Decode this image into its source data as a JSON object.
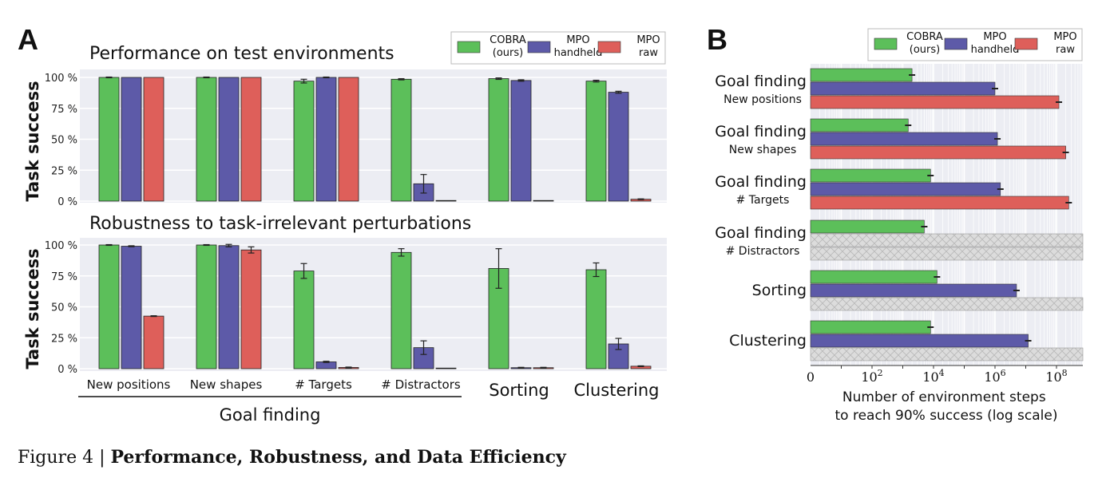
{
  "colors": {
    "cobra": "#5cbf5a",
    "handheld": "#5d5aa8",
    "raw": "#de5f5a",
    "plot_bg": "#ecedf3",
    "hatch": "#d9d9d9"
  },
  "panel_a": {
    "label": "A",
    "legend": [
      {
        "key": "cobra",
        "line1": "COBRA",
        "line2": "(ours)"
      },
      {
        "key": "handheld",
        "line1": "MPO",
        "line2": "handheld"
      },
      {
        "key": "raw",
        "line1": "MPO",
        "line2": "raw"
      }
    ],
    "group_labels": [
      "New positions",
      "New shapes",
      "# Targets",
      "# Distractors",
      "Sorting",
      "Clustering"
    ],
    "super_label": "Goal finding"
  },
  "panel_b": {
    "label": "B",
    "legend": [
      {
        "key": "cobra",
        "line1": "COBRA",
        "line2": "(ours)"
      },
      {
        "key": "handheld",
        "line1": "MPO",
        "line2": "handheld"
      },
      {
        "key": "raw",
        "line1": "MPO",
        "line2": "raw"
      }
    ],
    "tick_labels": [
      {
        "base": "0",
        "exp": ""
      },
      {
        "base": "10",
        "exp": "2"
      },
      {
        "base": "10",
        "exp": "4"
      },
      {
        "base": "10",
        "exp": "6"
      },
      {
        "base": "10",
        "exp": "8"
      }
    ]
  },
  "caption": {
    "prefix": "Figure 4 | ",
    "title": "Performance, Robustness, and Data Efficiency"
  },
  "chart_data": [
    {
      "type": "bar",
      "title": "Performance on test environments",
      "ylabel": "Task success",
      "ylim": [
        0,
        100
      ],
      "ytick_labels": [
        "0 %",
        "25 %",
        "50 %",
        "75 %",
        "100 %"
      ],
      "categories": [
        "New positions",
        "New shapes",
        "# Targets",
        "# Distractors",
        "Sorting",
        "Clustering"
      ],
      "series": [
        {
          "name": "COBRA (ours)",
          "values": [
            100,
            100,
            97,
            98.5,
            99,
            97
          ],
          "err": [
            0.3,
            0.3,
            1.5,
            0.5,
            0.6,
            0.7
          ]
        },
        {
          "name": "MPO handheld",
          "values": [
            100,
            100,
            100,
            14,
            97.5,
            88
          ],
          "err": [
            0,
            0,
            0.3,
            7.5,
            0.6,
            0.8
          ]
        },
        {
          "name": "MPO raw",
          "values": [
            100,
            100,
            100,
            0.5,
            0.5,
            1.5
          ],
          "err": [
            0,
            0,
            0,
            0.1,
            0.1,
            0.3
          ]
        }
      ]
    },
    {
      "type": "bar",
      "title": "Robustness to task-irrelevant perturbations",
      "ylabel": "Task success",
      "ylim": [
        0,
        100
      ],
      "ytick_labels": [
        "0 %",
        "25 %",
        "50 %",
        "75 %",
        "100 %"
      ],
      "categories": [
        "New positions",
        "New shapes",
        "# Targets",
        "# Distractors",
        "Sorting",
        "Clustering"
      ],
      "series": [
        {
          "name": "COBRA (ours)",
          "values": [
            100,
            100,
            79,
            94,
            81,
            80
          ],
          "err": [
            0.3,
            0.3,
            6,
            3,
            16,
            5.5
          ]
        },
        {
          "name": "MPO handheld",
          "values": [
            99,
            99.5,
            5.5,
            17,
            0.8,
            20
          ],
          "err": [
            0.4,
            1,
            0.5,
            5.5,
            0.3,
            4.5
          ]
        },
        {
          "name": "MPO raw",
          "values": [
            42.5,
            96,
            1,
            0.5,
            0.8,
            2
          ],
          "err": [
            0.3,
            2.5,
            0.3,
            0.2,
            0.3,
            0.3
          ]
        }
      ]
    },
    {
      "type": "bar",
      "orientation": "horizontal",
      "xlabel": "Number of environment steps\nto reach 90% success (log scale)",
      "xscale": "log",
      "xlim": [
        0,
        1000000000
      ],
      "categories": [
        {
          "main": "Goal finding",
          "sub": "New positions"
        },
        {
          "main": "Goal finding",
          "sub": "New shapes"
        },
        {
          "main": "Goal finding",
          "sub": "# Targets"
        },
        {
          "main": "Goal finding",
          "sub": "# Distractors"
        },
        {
          "main": "Sorting",
          "sub": ""
        },
        {
          "main": "Clustering",
          "sub": ""
        }
      ],
      "series": [
        {
          "name": "COBRA (ours)",
          "values": [
            2000,
            1500,
            8000,
            5000,
            13000,
            8000
          ]
        },
        {
          "name": "MPO handheld",
          "values": [
            1000000,
            1200000,
            1500000,
            null,
            5000000,
            12000000
          ]
        },
        {
          "name": "MPO raw",
          "values": [
            120000000,
            200000000,
            250000000,
            null,
            null,
            null
          ]
        }
      ],
      "not_reached": {
        "MPO handheld": [
          3
        ],
        "MPO raw": [
          3,
          4,
          5
        ]
      },
      "grid": true
    }
  ]
}
